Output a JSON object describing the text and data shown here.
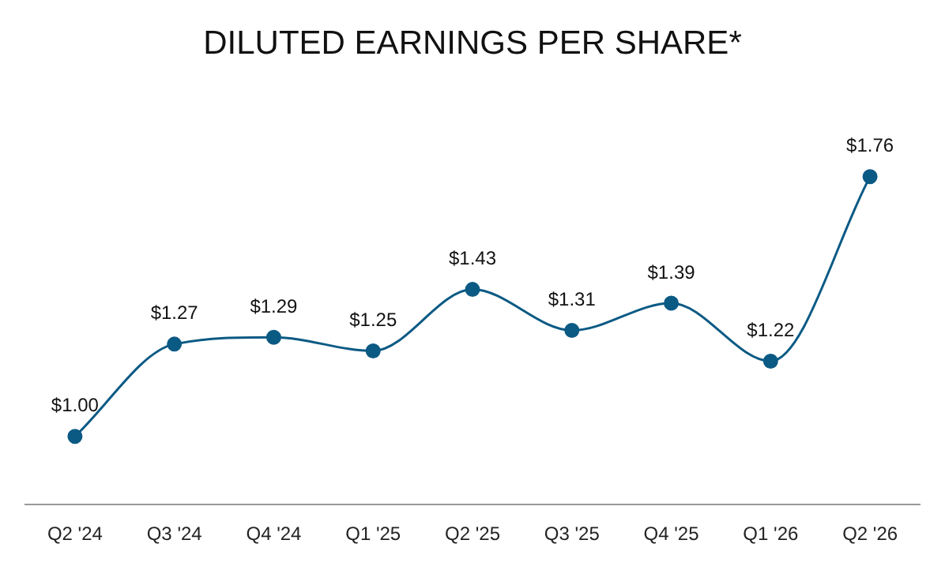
{
  "chart_data": {
    "type": "line",
    "title": "DILUTED EARNINGS PER SHARE*",
    "categories": [
      "Q2 '24",
      "Q3 '24",
      "Q4 '24",
      "Q1 '25",
      "Q2 '25",
      "Q3 '25",
      "Q4 '25",
      "Q1 '26",
      "Q2 '26"
    ],
    "series": [
      {
        "color": "#0b5a84",
        "values": [
          1.0,
          1.27,
          1.29,
          1.25,
          1.43,
          1.31,
          1.39,
          1.22,
          1.76
        ],
        "value_labels": [
          "$1.00",
          "$1.27",
          "$1.29",
          "$1.25",
          "$1.43",
          "$1.31",
          "$1.39",
          "$1.22",
          "$1.76"
        ]
      }
    ],
    "marker": "circle",
    "line_style": "solid",
    "grid": false,
    "legend": false
  }
}
